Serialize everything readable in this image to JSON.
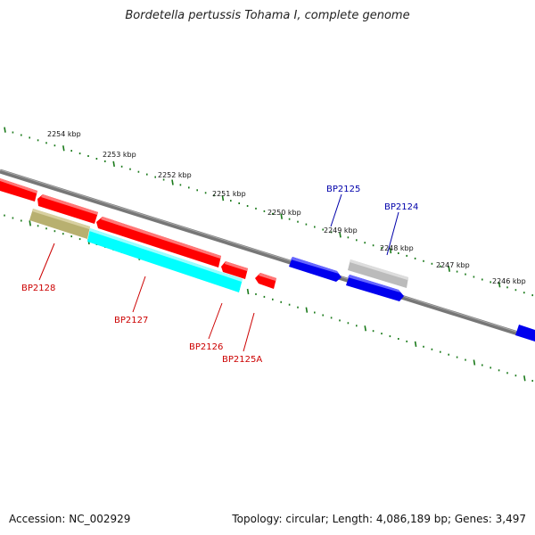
{
  "title": "Bordetella pertussis Tohama I, complete genome",
  "footer": {
    "accession": "Accession: NC_002929",
    "topology": "Topology: circular; Length: 4,086,189 bp; Genes: 3,497"
  },
  "colors": {
    "backbone": "#888888",
    "ruler_ticks": "#1a7a1a",
    "red_gene": "#ff0000",
    "red_gene_light": "#ff7777",
    "cyan_gene": "#00ffff",
    "olive_gene": "#b8b070",
    "blue_gene": "#0000ee",
    "grey_gene": "#bbbbbb",
    "red_label": "#cc0000",
    "blue_label": "#0000aa"
  },
  "ruler_labels": [
    "2254 kbp",
    "2253 kbp",
    "2252 kbp",
    "2251 kbp",
    "2250 kbp",
    "2249 kbp",
    "2248 kbp",
    "2247 kbp",
    "2246 kbp"
  ],
  "genes": [
    {
      "name": "BP2125",
      "strand": "forward",
      "color": "blue"
    },
    {
      "name": "BP2124",
      "strand": "reverse",
      "color": "blue"
    },
    {
      "name": "BP2128",
      "strand": "reverse",
      "color": "red"
    },
    {
      "name": "BP2127",
      "strand": "reverse",
      "color": "red"
    },
    {
      "name": "BP2126",
      "strand": "reverse",
      "color": "red"
    },
    {
      "name": "BP2125A",
      "strand": "reverse",
      "color": "red"
    }
  ]
}
